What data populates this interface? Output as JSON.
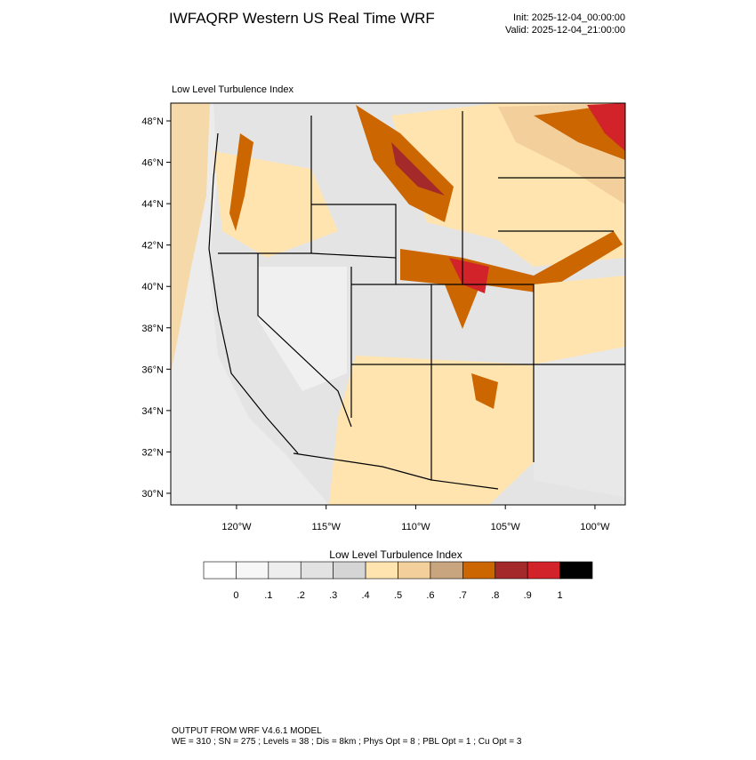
{
  "header": {
    "title": "IWFAQRP Western US Real Time WRF",
    "init": "Init: 2025-12-04_00:00:00",
    "valid": "Valid: 2025-12-04_21:00:00"
  },
  "map": {
    "title": "Low Level Turbulence Index",
    "lat_range": [
      29.44,
      48.86
    ],
    "lon_range": [
      -123.67,
      -98.31
    ],
    "lat_ticks": [
      {
        "value": 30,
        "label": "30°N"
      },
      {
        "value": 32,
        "label": "32°N"
      },
      {
        "value": 34,
        "label": "34°N"
      },
      {
        "value": 36,
        "label": "36°N"
      },
      {
        "value": 38,
        "label": "38°N"
      },
      {
        "value": 40,
        "label": "40°N"
      },
      {
        "value": 42,
        "label": "42°N"
      },
      {
        "value": 44,
        "label": "44°N"
      },
      {
        "value": 46,
        "label": "46°N"
      },
      {
        "value": 48,
        "label": "48°N"
      }
    ],
    "lon_ticks": [
      {
        "value": -120,
        "label": "120°W"
      },
      {
        "value": -115,
        "label": "115°W"
      },
      {
        "value": -110,
        "label": "110°W"
      },
      {
        "value": -105,
        "label": "105°W"
      },
      {
        "value": -100,
        "label": "100°W"
      }
    ]
  },
  "colorbar": {
    "title": "Low Level Turbulence Index",
    "colors": [
      "#ffffff",
      "#f7f7f7",
      "#eeeeee",
      "#e2e2e2",
      "#d5d5d5",
      "#ffe4b0",
      "#f3cf9c",
      "#c9a57f",
      "#cc6600",
      "#a4292b",
      "#d2232a",
      "#000000"
    ],
    "ticks": [
      0,
      {
        "value": 0.1,
        "label": ".1"
      },
      {
        "value": 0.2,
        "label": ".2"
      },
      {
        "value": 0.3,
        "label": ".3"
      },
      {
        "value": 0.4,
        "label": ".4"
      },
      {
        "value": 0.5,
        "label": ".5"
      },
      {
        "value": 0.6,
        "label": ".6"
      },
      {
        "value": 0.7,
        "label": ".7"
      },
      {
        "value": 0.8,
        "label": ".8"
      },
      {
        "value": 0.9,
        "label": ".9"
      },
      1
    ]
  },
  "footer": {
    "line1": "OUTPUT FROM WRF V4.6.1 MODEL",
    "line2": "WE = 310 ; SN = 275 ; Levels = 38 ; Dis = 8km ; Phys Opt = 8 ; PBL Opt = 1 ; Cu Opt = 3"
  }
}
